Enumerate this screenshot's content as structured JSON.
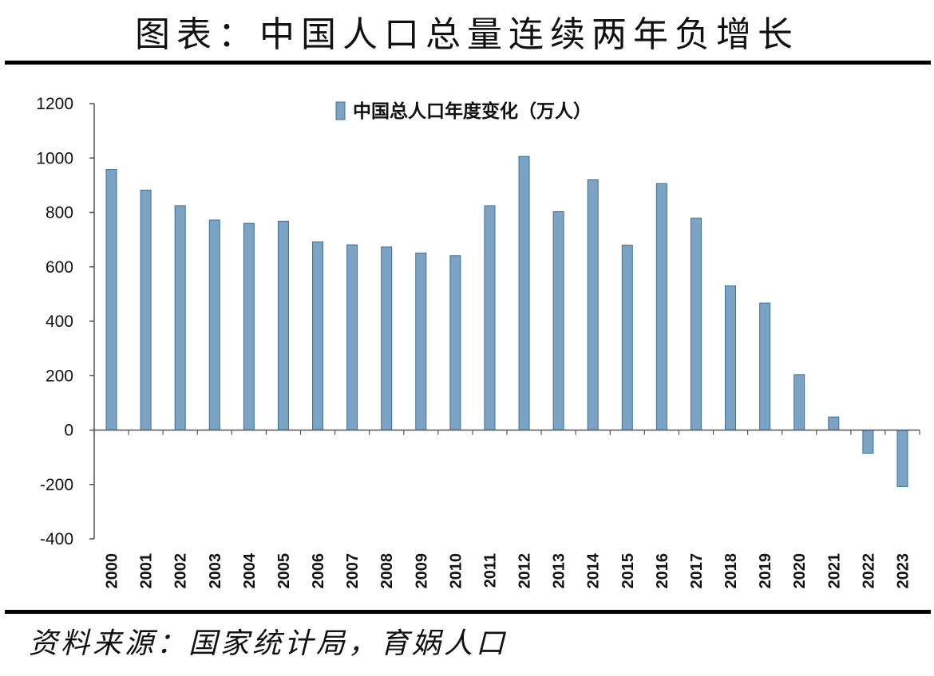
{
  "header": {
    "title": "图表：中国人口总量连续两年负增长"
  },
  "footer": {
    "source": "资料来源：国家统计局，育娲人口"
  },
  "colors": {
    "bar_fill": "#7aa3c4",
    "bar_edge": "#3f6f96",
    "axis": "#555555"
  },
  "chart_data": {
    "type": "bar",
    "title": "",
    "legend_position": "top",
    "series": [
      {
        "name": "中国总人口年度变化（万人）",
        "values": [
          958,
          882,
          825,
          772,
          760,
          768,
          692,
          681,
          673,
          651,
          641,
          825,
          1006,
          803,
          920,
          680,
          906,
          779,
          530,
          467,
          204,
          48,
          -85,
          -208
        ]
      }
    ],
    "categories": [
      "2000",
      "2001",
      "2002",
      "2003",
      "2004",
      "2005",
      "2006",
      "2007",
      "2008",
      "2009",
      "2010",
      "2011",
      "2012",
      "2013",
      "2014",
      "2015",
      "2016",
      "2017",
      "2018",
      "2019",
      "2020",
      "2021",
      "2022",
      "2023"
    ],
    "xlabel": "",
    "ylabel": "",
    "ylim": [
      -400,
      1200
    ],
    "yticks": [
      1200,
      1000,
      800,
      600,
      400,
      200,
      0,
      -200,
      -400
    ],
    "grid": false
  }
}
